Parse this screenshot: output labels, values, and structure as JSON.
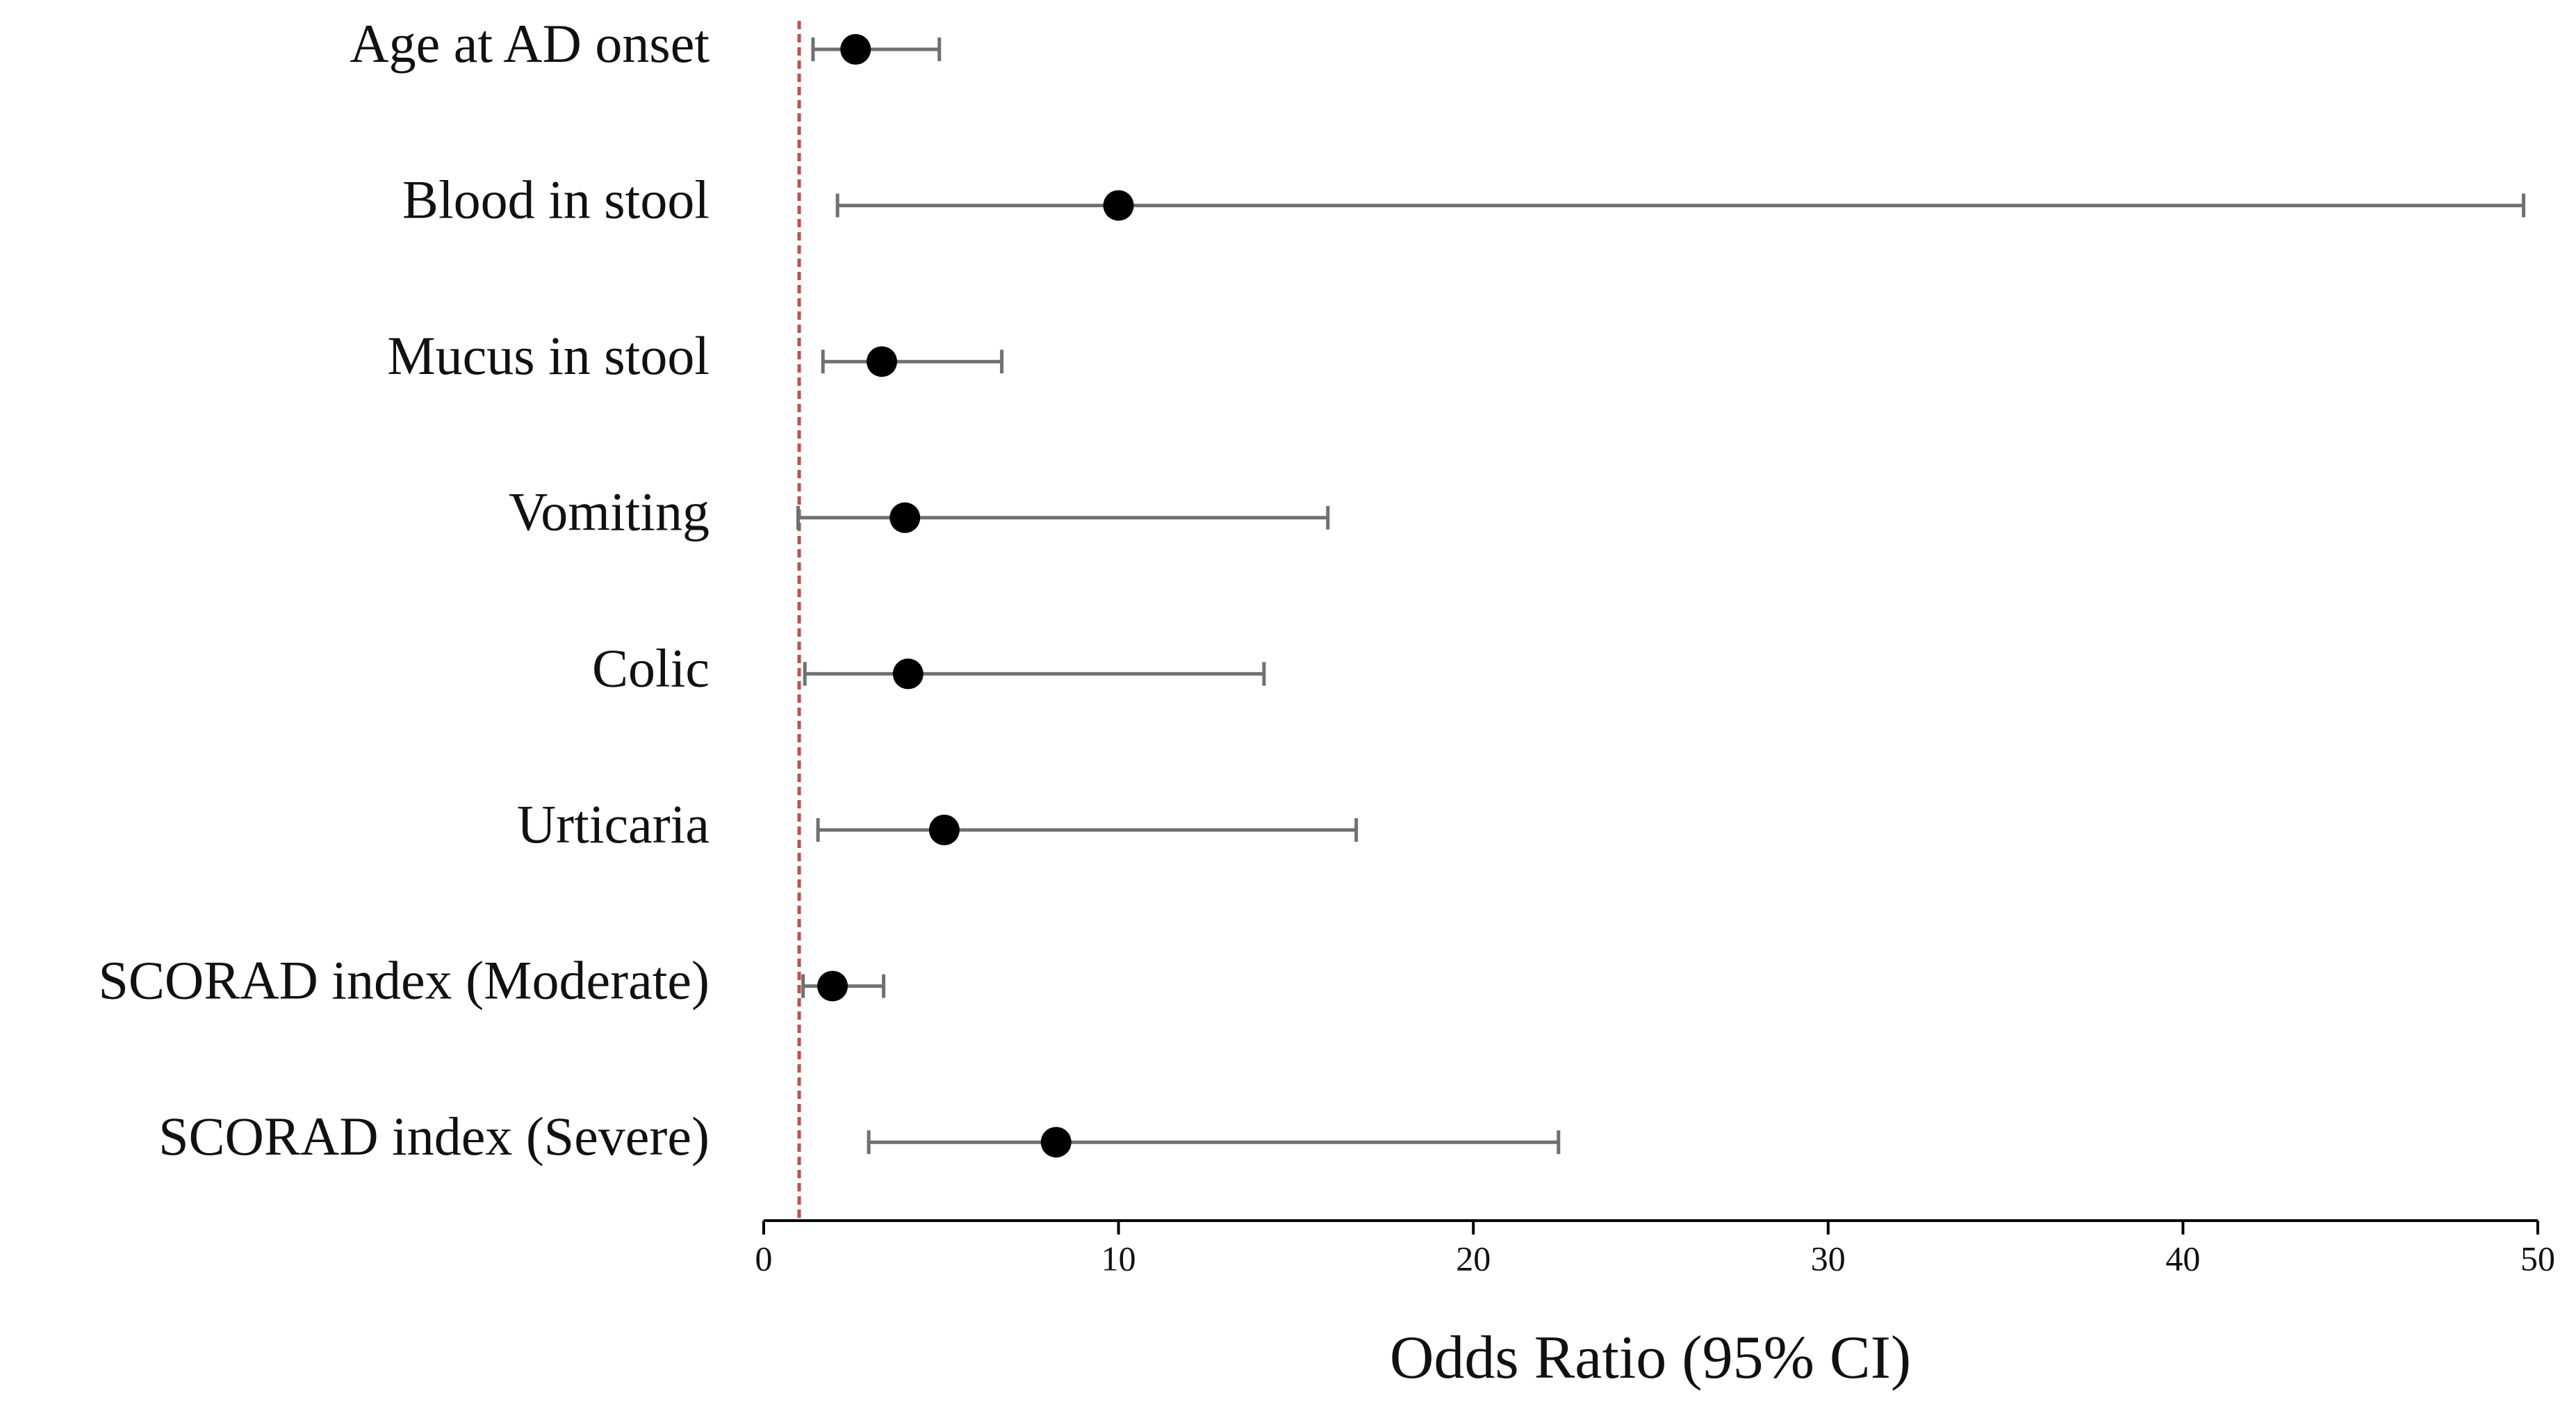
{
  "chart_data": {
    "type": "forest",
    "x_label": "Odds Ratio (95% CI)",
    "categories": [
      "Age at AD onset",
      "Blood in stool",
      "Mucus in stool",
      "Vomiting",
      "Colic",
      "Urticaria",
      "SCORAD index (Moderate)",
      "SCORAD index (Severe)"
    ],
    "series": [
      {
        "color": "#000000",
        "values": [
          2.59,
          10.0,
          3.33,
          3.98,
          4.07,
          5.09,
          1.94,
          8.24
        ],
        "lower": [
          1.39,
          2.08,
          1.67,
          0.97,
          1.16,
          1.53,
          1.11,
          2.96
        ],
        "upper": [
          4.95,
          49.6,
          6.71,
          15.9,
          14.1,
          16.7,
          3.38,
          22.4
        ]
      }
    ],
    "whisker_color": "#707070",
    "xlim": [
      0,
      50
    ],
    "xticks": [
      0,
      10,
      20,
      30,
      40,
      50
    ],
    "reference_line": {
      "value": 1,
      "color": "#c0504d"
    }
  }
}
